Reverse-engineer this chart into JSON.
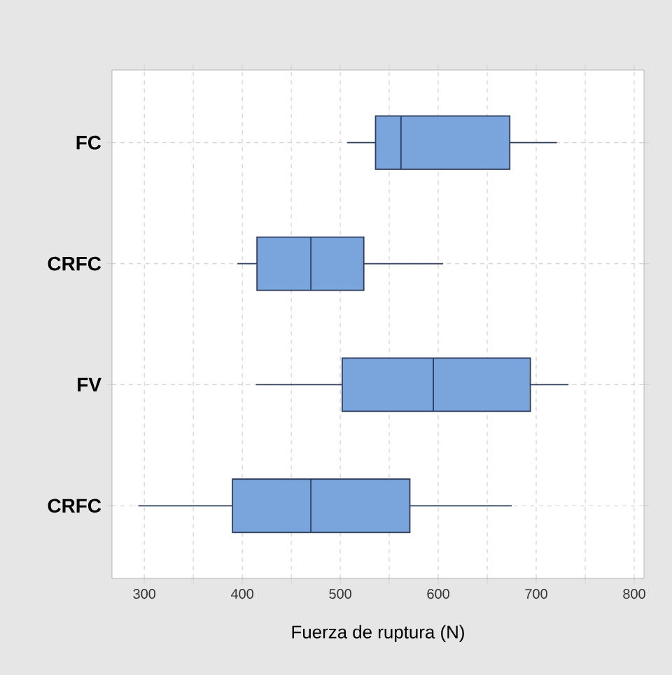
{
  "chart_data": {
    "type": "box",
    "orientation": "horizontal",
    "xlabel": "Fuerza de ruptura (N)",
    "categories": [
      "FC",
      "CRFC",
      "FV",
      "CRFC"
    ],
    "boxes": [
      {
        "low": 507,
        "q1": 536,
        "median": 562,
        "q3": 673,
        "high": 721
      },
      {
        "low": 395,
        "q1": 415,
        "median": 470,
        "q3": 524,
        "high": 605
      },
      {
        "low": 414,
        "q1": 502,
        "median": 595,
        "q3": 694,
        "high": 733
      },
      {
        "low": 294,
        "q1": 390,
        "median": 470,
        "q3": 571,
        "high": 675
      }
    ],
    "color": "#7aa5dc",
    "xlim": [
      267,
      810
    ],
    "xticks": [
      300,
      {
        "value": 350,
        "label": null
      },
      400,
      {
        "value": 450,
        "label": null
      },
      500,
      {
        "value": 550,
        "label": null
      },
      600,
      {
        "value": 650,
        "label": null
      },
      700,
      {
        "value": 750,
        "label": null
      },
      800
    ],
    "grid": true
  }
}
